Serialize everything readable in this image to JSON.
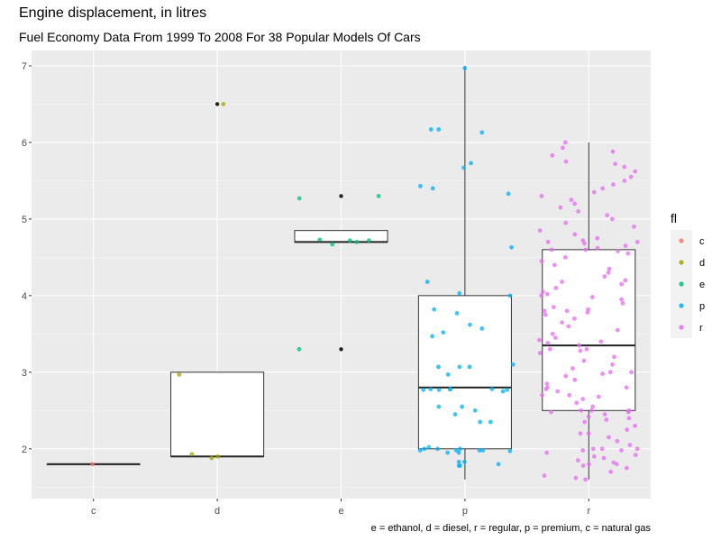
{
  "chart_data": {
    "type": "boxplot-jitter",
    "title": "Engine displacement, in litres",
    "subtitle": "Fuel Economy Data From 1999 To 2008 For 38 Popular Models Of Cars",
    "caption": "e = ethanol, d = diesel, r = regular, p = premium, c = natural gas",
    "xlabel": "",
    "ylabel": "",
    "categories": [
      "c",
      "d",
      "e",
      "p",
      "r"
    ],
    "ylim": [
      1.35,
      7.2
    ],
    "yticks": [
      2,
      3,
      4,
      5,
      6,
      7
    ],
    "grid": true,
    "legend": {
      "title": "fl",
      "position": "right",
      "entries": [
        "c",
        "d",
        "e",
        "p",
        "r"
      ]
    },
    "colors": {
      "c": "#F8766D",
      "d": "#A3A500",
      "e": "#00BF7D",
      "p": "#00B0F6",
      "r": "#E76BF3",
      "outlier": "#222222",
      "panel": "#EBEBEB"
    },
    "boxes": [
      {
        "category": "c",
        "min": 1.8,
        "q1": 1.8,
        "median": 1.8,
        "q3": 1.8,
        "max": 1.8
      },
      {
        "category": "d",
        "min": 1.9,
        "q1": 1.9,
        "median": 1.9,
        "q3": 3.0,
        "max": 3.0,
        "outliers": [
          6.5
        ]
      },
      {
        "category": "e",
        "min": 4.7,
        "q1": 4.7,
        "median": 4.7,
        "q3": 4.85,
        "max": 4.85,
        "outliers": [
          5.3,
          3.3
        ]
      },
      {
        "category": "p",
        "min": 1.6,
        "q1": 2.0,
        "median": 2.8,
        "q3": 4.0,
        "max": 7.0
      },
      {
        "category": "r",
        "min": 1.6,
        "q1": 2.5,
        "median": 3.35,
        "q3": 4.6,
        "max": 6.0
      }
    ],
    "points": {
      "c": [
        1.8
      ],
      "d": [
        6.5,
        2.97,
        1.93,
        1.88,
        1.9
      ],
      "e": [
        5.27,
        5.3,
        4.72,
        4.67,
        4.73,
        4.72,
        4.7,
        3.3
      ],
      "p": [
        6.97,
        6.17,
        6.13,
        6.17,
        5.73,
        5.67,
        5.4,
        5.43,
        5.33,
        4.63,
        4.18,
        4.03,
        4.0,
        3.82,
        3.77,
        3.62,
        3.57,
        3.52,
        3.47,
        3.1,
        3.07,
        3.07,
        3.07,
        2.97,
        2.78,
        2.78,
        2.78,
        2.78,
        2.77,
        2.77,
        2.77,
        2.75,
        2.55,
        2.55,
        2.5,
        2.45,
        2.35,
        2.35,
        2.02,
        2.0,
        2.0,
        2.0,
        1.98,
        1.98,
        1.98,
        1.98,
        1.97,
        1.95,
        1.95,
        1.83,
        1.83,
        1.8,
        1.78,
        1.78
      ],
      "r": [
        6.0,
        5.93,
        5.88,
        5.83,
        5.75,
        5.72,
        5.68,
        5.62,
        5.55,
        5.5,
        5.45,
        5.4,
        5.35,
        5.3,
        5.25,
        5.2,
        5.15,
        5.1,
        5.05,
        5.0,
        4.95,
        4.9,
        4.85,
        4.8,
        4.75,
        4.72,
        4.7,
        4.7,
        4.68,
        4.65,
        4.62,
        4.6,
        4.6,
        4.58,
        4.55,
        4.5,
        4.45,
        4.4,
        4.35,
        4.3,
        4.25,
        4.2,
        4.18,
        4.15,
        4.1,
        4.05,
        4.02,
        4.0,
        3.98,
        3.95,
        3.9,
        3.85,
        3.82,
        3.8,
        3.8,
        3.78,
        3.75,
        3.7,
        3.65,
        3.6,
        3.55,
        3.5,
        3.45,
        3.42,
        3.4,
        3.38,
        3.35,
        3.3,
        3.3,
        3.28,
        3.25,
        3.2,
        3.15,
        3.1,
        3.05,
        3.0,
        3.0,
        2.98,
        2.95,
        2.9,
        2.85,
        2.8,
        2.8,
        2.78,
        2.75,
        2.7,
        2.7,
        2.68,
        2.65,
        2.6,
        2.55,
        2.5,
        2.5,
        2.5,
        2.48,
        2.48,
        2.45,
        2.42,
        2.4,
        2.38,
        2.35,
        2.3,
        2.25,
        2.2,
        2.2,
        2.15,
        2.1,
        2.05,
        2.0,
        2.0,
        2.0,
        1.98,
        1.98,
        1.95,
        1.92,
        1.9,
        1.88,
        1.85,
        1.82,
        1.8,
        1.8,
        1.78,
        1.75,
        1.7,
        1.65,
        1.62,
        1.6
      ]
    }
  }
}
